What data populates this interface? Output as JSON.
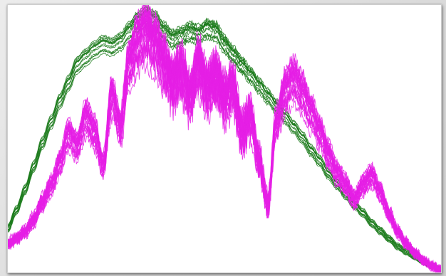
{
  "chart_data": {
    "type": "line",
    "title": "",
    "xlabel": "",
    "ylabel": "",
    "grid": false,
    "legend": "none",
    "x": [
      0,
      0.02,
      0.04,
      0.06,
      0.08,
      0.1,
      0.12,
      0.14,
      0.16,
      0.18,
      0.2,
      0.22,
      0.24,
      0.26,
      0.28,
      0.3,
      0.32,
      0.34,
      0.36,
      0.38,
      0.4,
      0.42,
      0.44,
      0.46,
      0.48,
      0.5,
      0.52,
      0.54,
      0.56,
      0.58,
      0.6,
      0.62,
      0.64,
      0.66,
      0.68,
      0.7,
      0.72,
      0.74,
      0.76,
      0.78,
      0.8,
      0.82,
      0.84,
      0.86,
      0.88,
      0.9,
      0.92,
      0.94,
      0.96,
      0.98,
      1.0
    ],
    "xlim": [
      0,
      1
    ],
    "ylim": [
      0,
      1
    ],
    "groups": [
      {
        "color": "#1a7a1a",
        "count": 14,
        "spread": 0.05,
        "noise": 0.004,
        "base": [
          0.17,
          0.24,
          0.32,
          0.41,
          0.5,
          0.58,
          0.66,
          0.73,
          0.8,
          0.83,
          0.86,
          0.88,
          0.87,
          0.89,
          0.93,
          0.97,
          0.99,
          0.97,
          0.93,
          0.9,
          0.91,
          0.93,
          0.92,
          0.94,
          0.93,
          0.88,
          0.84,
          0.8,
          0.76,
          0.72,
          0.68,
          0.64,
          0.6,
          0.56,
          0.52,
          0.47,
          0.43,
          0.38,
          0.34,
          0.3,
          0.26,
          0.23,
          0.19,
          0.16,
          0.13,
          0.1,
          0.08,
          0.06,
          0.04,
          0.025,
          0.012
        ]
      },
      {
        "color": "#e51ee5",
        "count": 26,
        "spread": 0.16,
        "noise": 0.03,
        "base": [
          0.12,
          0.14,
          0.17,
          0.22,
          0.29,
          0.36,
          0.45,
          0.57,
          0.52,
          0.64,
          0.58,
          0.44,
          0.73,
          0.6,
          0.86,
          0.95,
          0.99,
          0.94,
          0.86,
          0.78,
          0.83,
          0.73,
          0.86,
          0.75,
          0.8,
          0.72,
          0.76,
          0.58,
          0.64,
          0.46,
          0.28,
          0.62,
          0.75,
          0.8,
          0.74,
          0.66,
          0.58,
          0.49,
          0.41,
          0.36,
          0.3,
          0.36,
          0.4,
          0.33,
          0.24,
          0.17,
          0.12,
          0.08,
          0.05,
          0.03,
          0.01
        ]
      }
    ]
  }
}
